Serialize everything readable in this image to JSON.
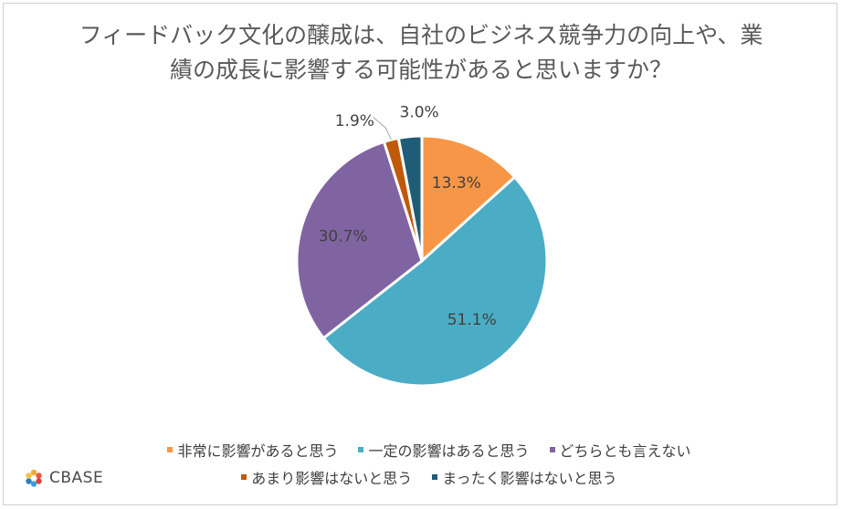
{
  "title_lines": [
    "フィードバック文化の醸成は、自社のビジネス競争力の向上や、業",
    "績の成長に影響する可能性があると思いますか？"
  ],
  "chart_data": {
    "type": "pie",
    "title": "フィードバック文化の醸成は、自社のビジネス競争力の向上や、業績の成長に影響する可能性があると思いますか？",
    "categories": [
      "非常に影響があると思う",
      "一定の影響はあると思う",
      "どちらとも言えない",
      "あまり影響はないと思う",
      "まったく影響はないと思う"
    ],
    "values": [
      13.3,
      51.1,
      30.7,
      1.9,
      3.0
    ],
    "labels": [
      "13.3%",
      "51.1%",
      "30.7%",
      "1.9%",
      "3.0%"
    ],
    "colors": [
      "#F79646",
      "#4BACC6",
      "#8064A2",
      "#C0590A",
      "#1F5C78"
    ],
    "legend_position": "bottom"
  },
  "logo": {
    "text": "CBASE"
  }
}
